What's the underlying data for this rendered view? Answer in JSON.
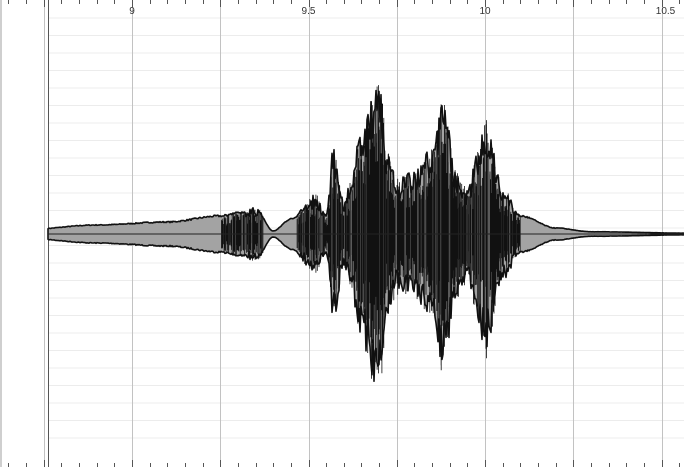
{
  "timeline": {
    "start_seconds": 8.5,
    "end_seconds": 10.6,
    "major_ticks": [
      "9",
      "9.5",
      "10",
      "10.5"
    ],
    "major_tick_seconds": [
      9,
      9.5,
      10,
      10.5
    ],
    "minor_tick_step_seconds": 0.05,
    "grid_step_seconds": 0.25
  },
  "waveform": {
    "envelope_seconds": [
      8.45,
      8.7,
      8.9,
      9.1,
      9.25,
      9.3,
      9.35,
      9.4,
      9.45,
      9.52,
      9.55,
      9.57,
      9.6,
      9.62,
      9.65,
      9.7,
      9.72,
      9.75,
      9.8,
      9.85,
      9.88,
      9.92,
      9.95,
      9.98,
      10.0,
      10.05,
      10.1,
      10.2,
      10.3,
      10.6
    ],
    "envelope_amplitude": [
      0.01,
      0.03,
      0.06,
      0.08,
      0.12,
      0.14,
      0.17,
      0.02,
      0.1,
      0.25,
      0.12,
      0.55,
      0.22,
      0.35,
      0.7,
      1.0,
      0.55,
      0.35,
      0.4,
      0.55,
      0.85,
      0.4,
      0.28,
      0.55,
      0.75,
      0.3,
      0.12,
      0.04,
      0.015,
      0.005
    ],
    "fill_color": "#a3a3a3",
    "outline_color": "#111111",
    "centerline_color": "#222222"
  },
  "colors": {
    "grid_major": "#c2c2c2",
    "grid_minor": "#ececec",
    "ruler_tick": "#555555",
    "background": "#ffffff"
  }
}
